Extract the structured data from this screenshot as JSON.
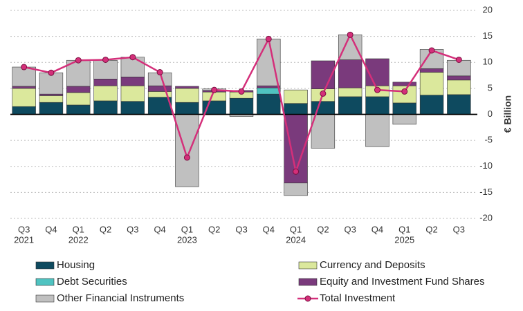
{
  "chart_data": {
    "type": "stacked-bar-line",
    "y_axis_label": "€ Billion",
    "categories": [
      "Q3",
      "Q4",
      "Q1",
      "Q2",
      "Q3",
      "Q4",
      "Q1",
      "Q2",
      "Q3",
      "Q4",
      "Q1",
      "Q2",
      "Q3",
      "Q4",
      "Q1",
      "Q2",
      "Q3"
    ],
    "category_years": [
      "2021",
      null,
      "2022",
      null,
      null,
      null,
      "2023",
      null,
      null,
      null,
      "2024",
      null,
      null,
      null,
      "2025",
      null,
      null
    ],
    "ylim": [
      -20,
      20
    ],
    "yticks": [
      -20,
      -15,
      -10,
      -5,
      0,
      5,
      10,
      15,
      20
    ],
    "grid": true,
    "series": [
      {
        "name": "Housing",
        "kind": "bar",
        "color": "#0e4a5f",
        "values": [
          1.5,
          2.3,
          1.8,
          2.6,
          2.5,
          3.3,
          2.3,
          2.6,
          3.1,
          3.9,
          2.1,
          2.5,
          3.4,
          3.4,
          2.2,
          3.7,
          3.8
        ]
      },
      {
        "name": "Currency and Deposits",
        "kind": "bar",
        "color": "#dbe89c",
        "values": [
          3.5,
          1.3,
          2.4,
          2.9,
          3.0,
          1.1,
          2.7,
          1.7,
          1.2,
          0,
          2.6,
          2.4,
          1.7,
          2.1,
          3.3,
          4.4,
          2.8
        ]
      },
      {
        "name": "Debt Securities",
        "kind": "bar",
        "color": "#4fc3c1",
        "values": [
          0,
          0,
          0,
          0,
          0,
          0,
          0,
          0,
          0,
          1.2,
          0,
          0,
          0,
          0,
          0,
          0,
          0
        ]
      },
      {
        "name": "Equity and Investment Fund Shares",
        "kind": "bar",
        "color": "#7a3a7c",
        "values": [
          0.4,
          0.3,
          1.2,
          1.3,
          1.7,
          1.1,
          0.4,
          0.3,
          0.3,
          0.4,
          -13.2,
          5.4,
          5.4,
          5.2,
          0.7,
          0.7,
          0.8
        ]
      },
      {
        "name": "Other Financial Instruments",
        "kind": "bar",
        "color": "#c0c0c0",
        "values": [
          3.7,
          4.1,
          5.0,
          3.6,
          3.8,
          2.5,
          -13.9,
          0.3,
          -0.4,
          9.0,
          -2.4,
          -6.5,
          4.8,
          -6.2,
          -1.9,
          3.7,
          3.0
        ]
      },
      {
        "name": "Total Investment",
        "kind": "line",
        "color": "#d42f7a",
        "values": [
          9.1,
          8.0,
          10.4,
          10.5,
          11.0,
          8.1,
          -8.3,
          4.7,
          4.4,
          14.5,
          -11.0,
          4.0,
          15.3,
          4.7,
          4.4,
          12.3,
          10.5
        ]
      }
    ]
  }
}
